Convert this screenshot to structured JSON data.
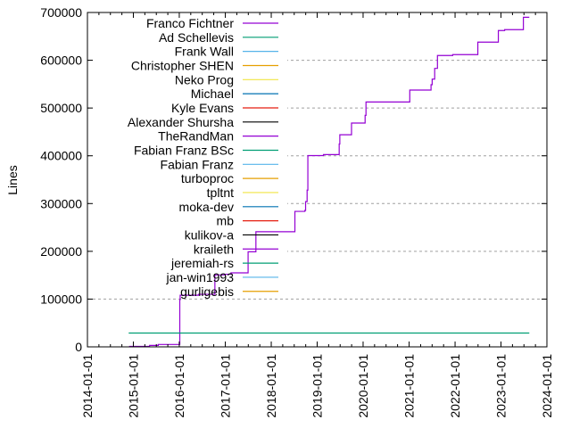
{
  "chart_data": {
    "type": "line",
    "title": "",
    "xlabel": "",
    "ylabel": "Lines",
    "x_type": "date",
    "xlim": [
      "2014-01-01",
      "2024-01-01"
    ],
    "ylim": [
      0,
      700000
    ],
    "x_ticks": [
      "2014-01-01",
      "2015-01-01",
      "2016-01-01",
      "2017-01-01",
      "2018-01-01",
      "2019-01-01",
      "2020-01-01",
      "2021-01-01",
      "2022-01-01",
      "2023-01-01",
      "2024-01-01"
    ],
    "y_ticks": [
      0,
      100000,
      200000,
      300000,
      400000,
      500000,
      600000,
      700000
    ],
    "y_tick_labels": [
      "0",
      "100000",
      "200000",
      "300000",
      "400000",
      "500000",
      "600000",
      "700000"
    ],
    "grid": "y dotted",
    "legend_placement": "top-left",
    "series": [
      {
        "name": "Franco Fichtner",
        "color": "#9400d3",
        "style": "steps",
        "points": [
          [
            "2014-11-28",
            1000
          ],
          [
            "2015-05-10",
            3000
          ],
          [
            "2015-07-18",
            5000
          ],
          [
            "2016-01-05",
            99000
          ],
          [
            "2016-01-08",
            108000
          ],
          [
            "2016-06-01",
            110000
          ],
          [
            "2016-10-10",
            150600
          ],
          [
            "2016-12-25",
            152000
          ],
          [
            "2017-02-15",
            155000
          ],
          [
            "2017-07-01",
            199000
          ],
          [
            "2017-09-01",
            241000
          ],
          [
            "2018-07-08",
            283600
          ],
          [
            "2018-09-25",
            285600
          ],
          [
            "2018-10-01",
            304000
          ],
          [
            "2018-10-13",
            328000
          ],
          [
            "2018-10-19",
            400400
          ],
          [
            "2019-02-20",
            402500
          ],
          [
            "2019-06-25",
            424600
          ],
          [
            "2019-06-30",
            444000
          ],
          [
            "2019-10-01",
            468600
          ],
          [
            "2020-01-17",
            484700
          ],
          [
            "2020-01-24",
            512700
          ],
          [
            "2021-01-06",
            537600
          ],
          [
            "2021-06-24",
            548800
          ],
          [
            "2021-07-03",
            560500
          ],
          [
            "2021-07-23",
            583000
          ],
          [
            "2021-08-14",
            609900
          ],
          [
            "2021-12-13",
            611800
          ],
          [
            "2022-07-01",
            637900
          ],
          [
            "2022-12-11",
            662200
          ],
          [
            "2023-01-30",
            664000
          ],
          [
            "2023-06-28",
            690000
          ],
          [
            "2023-08-14",
            690000
          ]
        ]
      },
      {
        "name": "Ad Schellevis",
        "color": "#009e73",
        "style": "steps",
        "points": [
          [
            "2014-11-25",
            29000
          ],
          [
            "2023-08-14",
            29000
          ]
        ]
      },
      {
        "name": "Frank Wall",
        "color": "#56b4e9",
        "points": []
      },
      {
        "name": "Christopher SHEN",
        "color": "#e69f00",
        "points": []
      },
      {
        "name": "Neko Prog",
        "color": "#f0e442",
        "points": []
      },
      {
        "name": "Michael",
        "color": "#0072b2",
        "points": []
      },
      {
        "name": "Kyle Evans",
        "color": "#e51e10",
        "points": []
      },
      {
        "name": "Alexander Shursha",
        "color": "#000000",
        "points": []
      },
      {
        "name": "TheRandMan",
        "color": "#9400d3",
        "points": []
      },
      {
        "name": "Fabian Franz BSc",
        "color": "#009e73",
        "points": []
      },
      {
        "name": "Fabian Franz",
        "color": "#56b4e9",
        "points": []
      },
      {
        "name": "turboproc",
        "color": "#e69f00",
        "points": []
      },
      {
        "name": "tpltnt",
        "color": "#f0e442",
        "points": []
      },
      {
        "name": "moka-dev",
        "color": "#0072b2",
        "points": []
      },
      {
        "name": "mb",
        "color": "#e51e10",
        "points": []
      },
      {
        "name": "kulikov-a",
        "color": "#000000",
        "points": []
      },
      {
        "name": "kraileth",
        "color": "#9400d3",
        "points": []
      },
      {
        "name": "jeremiah-rs",
        "color": "#009e73",
        "points": []
      },
      {
        "name": "jan-win1993",
        "color": "#56b4e9",
        "points": []
      },
      {
        "name": "gurligebis",
        "color": "#e69f00",
        "points": []
      }
    ]
  }
}
